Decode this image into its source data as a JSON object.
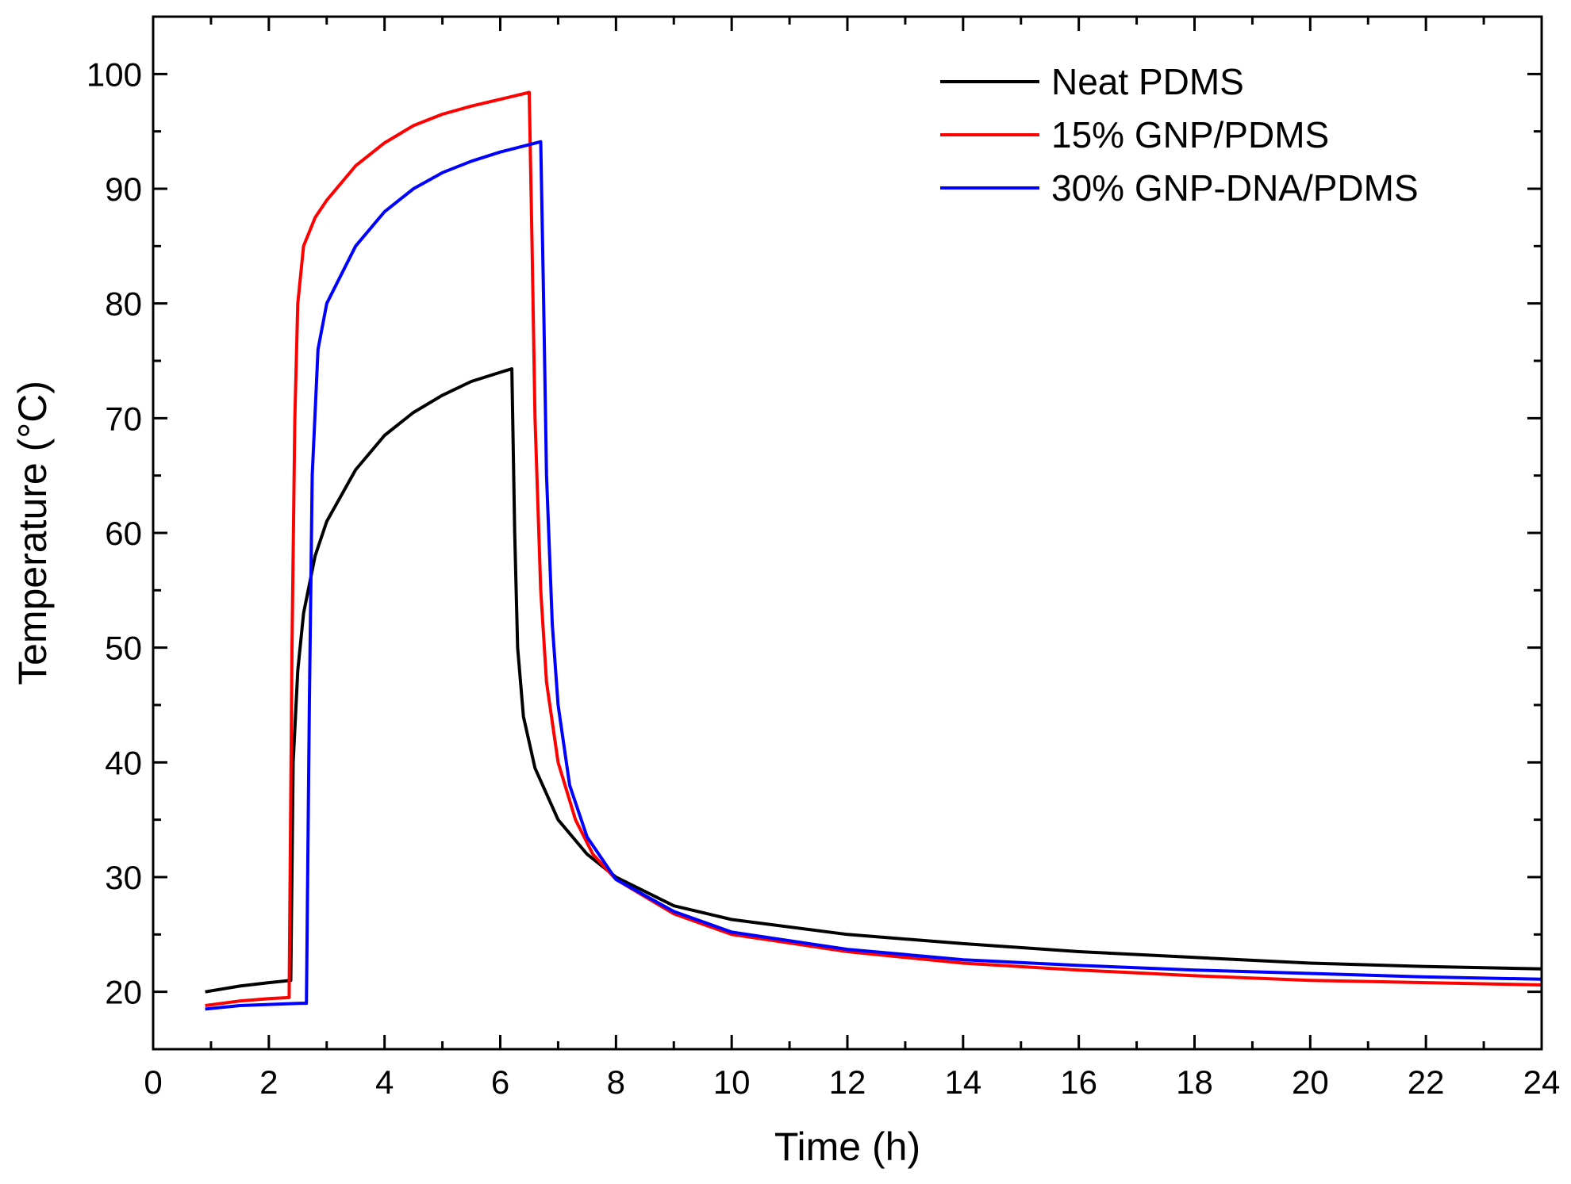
{
  "chart_data": {
    "type": "line",
    "title": "",
    "xlabel": "Time (h)",
    "ylabel": "Temperature (°C)",
    "xlim": [
      0,
      24
    ],
    "ylim": [
      15,
      105
    ],
    "xticks": [
      0,
      2,
      4,
      6,
      8,
      10,
      12,
      14,
      16,
      18,
      20,
      22,
      24
    ],
    "yticks": [
      20,
      30,
      40,
      50,
      60,
      70,
      80,
      90,
      100
    ],
    "grid": false,
    "legend_position": "top-right",
    "series": [
      {
        "name": "Neat PDMS",
        "color": "#000000",
        "x": [
          0.9,
          1.5,
          2.0,
          2.38,
          2.42,
          2.5,
          2.6,
          2.8,
          3.0,
          3.5,
          4.0,
          4.5,
          5.0,
          5.5,
          6.0,
          6.2,
          6.25,
          6.3,
          6.4,
          6.6,
          7.0,
          7.5,
          8.0,
          9.0,
          10.0,
          12.0,
          14.0,
          16.0,
          18.0,
          20.0,
          22.0,
          24.0
        ],
        "y": [
          20.0,
          20.5,
          20.8,
          21.0,
          40.0,
          48.0,
          53.0,
          58.0,
          61.0,
          65.5,
          68.5,
          70.5,
          72.0,
          73.2,
          74.0,
          74.3,
          60.0,
          50.0,
          44.0,
          39.5,
          35.0,
          32.0,
          30.0,
          27.5,
          26.3,
          25.0,
          24.2,
          23.5,
          23.0,
          22.5,
          22.2,
          22.0
        ]
      },
      {
        "name": "15% GNP/PDMS",
        "color": "#ff0000",
        "x": [
          0.9,
          1.5,
          2.0,
          2.35,
          2.4,
          2.45,
          2.5,
          2.6,
          2.8,
          3.0,
          3.5,
          4.0,
          4.5,
          5.0,
          5.5,
          6.0,
          6.5,
          6.55,
          6.6,
          6.7,
          6.8,
          7.0,
          7.3,
          7.6,
          8.0,
          9.0,
          10.0,
          12.0,
          14.0,
          16.0,
          18.0,
          20.0,
          22.0,
          24.0
        ],
        "y": [
          18.8,
          19.2,
          19.4,
          19.5,
          50.0,
          70.0,
          80.0,
          85.0,
          87.5,
          89.0,
          92.0,
          94.0,
          95.5,
          96.5,
          97.2,
          97.8,
          98.4,
          85.0,
          70.0,
          55.0,
          47.0,
          40.0,
          35.0,
          32.0,
          29.8,
          26.8,
          25.0,
          23.5,
          22.5,
          21.9,
          21.4,
          21.0,
          20.8,
          20.6
        ]
      },
      {
        "name": "30% GNP-DNA/PDMS",
        "color": "#0000ff",
        "x": [
          0.9,
          1.5,
          2.0,
          2.55,
          2.65,
          2.7,
          2.75,
          2.85,
          3.0,
          3.5,
          4.0,
          4.5,
          5.0,
          5.5,
          6.0,
          6.7,
          6.75,
          6.8,
          6.9,
          7.0,
          7.2,
          7.5,
          8.0,
          9.0,
          10.0,
          12.0,
          14.0,
          16.0,
          18.0,
          20.0,
          22.0,
          24.0
        ],
        "y": [
          18.5,
          18.8,
          18.9,
          19.0,
          19.0,
          45.0,
          65.0,
          76.0,
          80.0,
          85.0,
          88.0,
          90.0,
          91.4,
          92.4,
          93.2,
          94.1,
          80.0,
          65.0,
          52.0,
          45.0,
          38.0,
          33.5,
          29.8,
          27.0,
          25.2,
          23.7,
          22.8,
          22.3,
          21.9,
          21.6,
          21.3,
          21.1
        ]
      }
    ]
  }
}
